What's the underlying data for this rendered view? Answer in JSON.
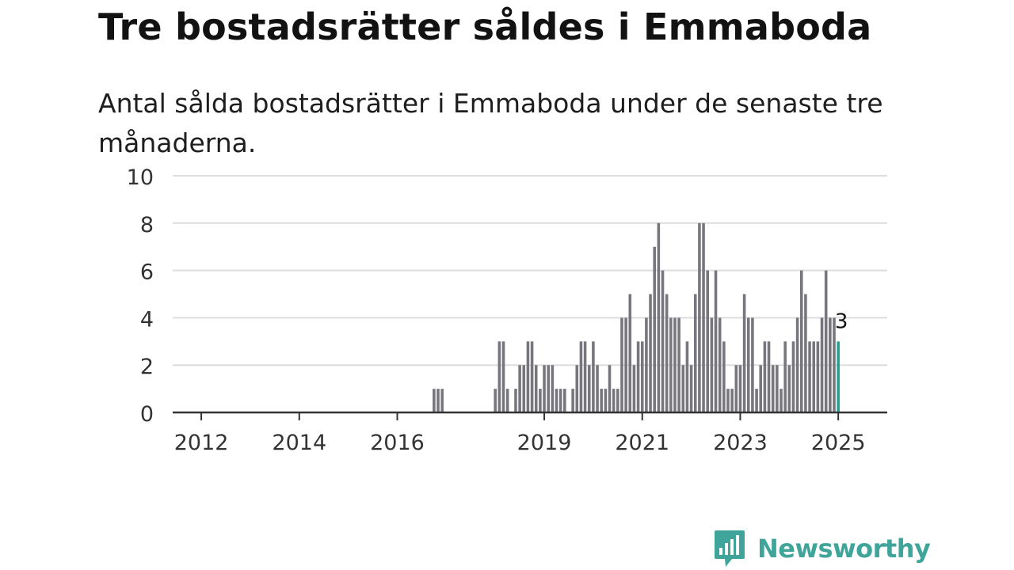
{
  "title": "Tre bostadsrätter såldes i Emmaboda",
  "subtitle": "Antal sålda bostadsrätter i Emmaboda under de senaste tre månaderna.",
  "brand": {
    "label": "Newsworthy",
    "icon": "newsworthy-logo-icon",
    "color": "#3fa59a"
  },
  "colors": {
    "bar": "#76767c",
    "highlight": "#1f9e92",
    "grid": "#dddddd",
    "axis": "#333333",
    "text": "#333333"
  },
  "chart_data": {
    "type": "bar",
    "title": "Tre bostadsrätter såldes i Emmaboda",
    "subtitle": "Antal sålda bostadsrätter i Emmaboda under de senaste tre månaderna.",
    "xlabel": "",
    "ylabel": "",
    "ylim": [
      0,
      10
    ],
    "yticks": [
      0,
      2,
      4,
      6,
      8,
      10
    ],
    "xlim": [
      "2011-06",
      "2026-01"
    ],
    "xticks": [
      {
        "date": "2012-01",
        "label": "2012"
      },
      {
        "date": "2014-01",
        "label": "2014"
      },
      {
        "date": "2016-01",
        "label": "2016"
      },
      {
        "date": "2019-01",
        "label": "2019"
      },
      {
        "date": "2021-01",
        "label": "2021"
      },
      {
        "date": "2023-01",
        "label": "2023"
      },
      {
        "date": "2025-01",
        "label": "2025"
      }
    ],
    "grid": true,
    "legend": "none",
    "annotation": {
      "date": "2025-01",
      "label": "3"
    },
    "x": [
      "2016-10",
      "2016-11",
      "2016-12",
      "2017-01",
      "2017-02",
      "2017-03",
      "2017-04",
      "2017-05",
      "2017-06",
      "2017-07",
      "2017-08",
      "2017-09",
      "2017-10",
      "2017-11",
      "2017-12",
      "2018-01",
      "2018-02",
      "2018-03",
      "2018-04",
      "2018-05",
      "2018-06",
      "2018-07",
      "2018-08",
      "2018-09",
      "2018-10",
      "2018-11",
      "2018-12",
      "2019-01",
      "2019-02",
      "2019-03",
      "2019-04",
      "2019-05",
      "2019-06",
      "2019-07",
      "2019-08",
      "2019-09",
      "2019-10",
      "2019-11",
      "2019-12",
      "2020-01",
      "2020-02",
      "2020-03",
      "2020-04",
      "2020-05",
      "2020-06",
      "2020-07",
      "2020-08",
      "2020-09",
      "2020-10",
      "2020-11",
      "2020-12",
      "2021-01",
      "2021-02",
      "2021-03",
      "2021-04",
      "2021-05",
      "2021-06",
      "2021-07",
      "2021-08",
      "2021-09",
      "2021-10",
      "2021-11",
      "2021-12",
      "2022-01",
      "2022-02",
      "2022-03",
      "2022-04",
      "2022-05",
      "2022-06",
      "2022-07",
      "2022-08",
      "2022-09",
      "2022-10",
      "2022-11",
      "2022-12",
      "2023-01",
      "2023-02",
      "2023-03",
      "2023-04",
      "2023-05",
      "2023-06",
      "2023-07",
      "2023-08",
      "2023-09",
      "2023-10",
      "2023-11",
      "2023-12",
      "2024-01",
      "2024-02",
      "2024-03",
      "2024-04",
      "2024-05",
      "2024-06",
      "2024-07",
      "2024-08",
      "2024-09",
      "2024-10",
      "2024-11",
      "2024-12",
      "2025-01"
    ],
    "values": [
      1,
      1,
      1,
      0,
      0,
      0,
      0,
      0,
      0,
      0,
      0,
      0,
      0,
      0,
      0,
      1,
      3,
      3,
      1,
      0,
      1,
      2,
      2,
      3,
      3,
      2,
      1,
      2,
      2,
      2,
      1,
      1,
      1,
      0,
      1,
      2,
      3,
      3,
      2,
      3,
      2,
      1,
      1,
      2,
      1,
      1,
      4,
      4,
      5,
      2,
      3,
      3,
      4,
      5,
      7,
      8,
      6,
      5,
      4,
      4,
      4,
      2,
      3,
      2,
      5,
      8,
      8,
      6,
      4,
      6,
      4,
      3,
      1,
      1,
      2,
      2,
      5,
      4,
      4,
      1,
      2,
      3,
      3,
      2,
      2,
      1,
      3,
      2,
      3,
      4,
      6,
      5,
      3,
      3,
      3,
      4,
      6,
      4,
      4,
      3
    ]
  }
}
